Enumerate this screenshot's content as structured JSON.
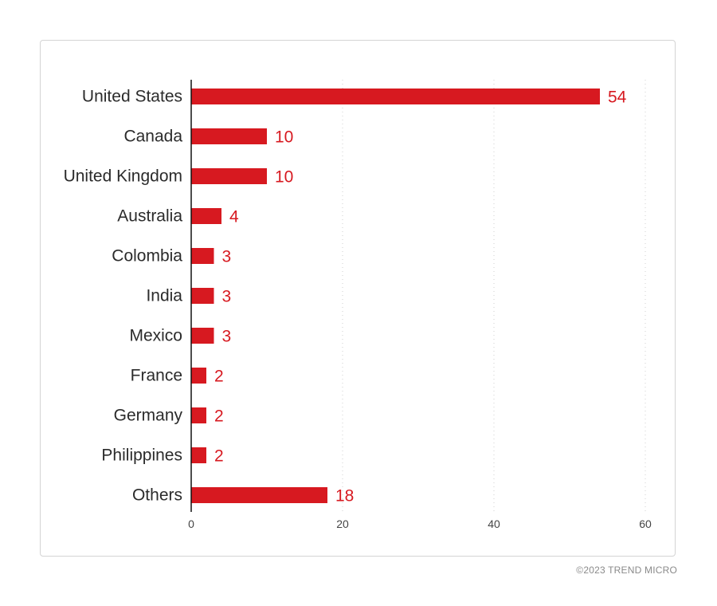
{
  "chart_data": {
    "type": "bar",
    "orientation": "horizontal",
    "categories": [
      "United States",
      "Canada",
      "United Kingdom",
      "Australia",
      "Colombia",
      "India",
      "Mexico",
      "France",
      "Germany",
      "Philippines",
      "Others"
    ],
    "values": [
      54,
      10,
      10,
      4,
      3,
      3,
      3,
      2,
      2,
      2,
      18
    ],
    "xlim": [
      0,
      60
    ],
    "xticks": [
      0,
      20,
      40,
      60
    ],
    "grid": "dotted vertical",
    "title": "",
    "xlabel": "",
    "ylabel": "",
    "bar_color": "#d71920",
    "value_label_color": "#d71920"
  },
  "footer": {
    "copyright": "©2023 TREND MICRO"
  }
}
